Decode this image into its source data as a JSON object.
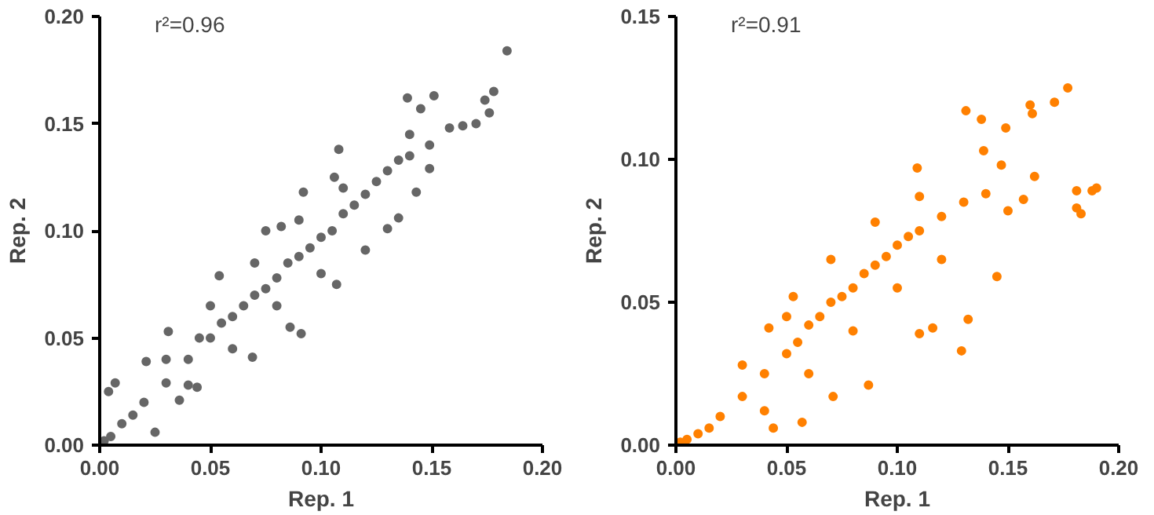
{
  "chart_data": [
    {
      "type": "scatter",
      "xlabel": "Rep. 1",
      "ylabel": "Rep. 2",
      "marker": "circle",
      "annotations": [
        "r²=0.96"
      ],
      "xlim": [
        0,
        0.2
      ],
      "ylim": [
        0,
        0.2
      ],
      "xticks": [
        {
          "value": 0,
          "label": "0.00"
        },
        {
          "value": 0.05,
          "label": "0.05"
        },
        {
          "value": 0.1,
          "label": "0.10"
        },
        {
          "value": 0.15,
          "label": "0.15"
        },
        {
          "value": 0.2,
          "label": "0.20"
        }
      ],
      "yticks": [
        {
          "value": 0,
          "label": "0.00"
        },
        {
          "value": 0.05,
          "label": "0.05"
        },
        {
          "value": 0.1,
          "label": "0.10"
        },
        {
          "value": 0.15,
          "label": "0.15"
        },
        {
          "value": 0.2,
          "label": "0.20"
        }
      ],
      "series": [
        {
          "color": "#666666",
          "x": [
            0.184,
            0.178,
            0.174,
            0.176,
            0.17,
            0.164,
            0.158,
            0.139,
            0.151,
            0.145,
            0.14,
            0.149,
            0.149,
            0.143,
            0.135,
            0.13,
            0.108,
            0.106,
            0.092,
            0.082,
            0.075,
            0.12,
            0.107,
            0.091,
            0.086,
            0.054,
            0.031,
            0.021,
            0.004,
            0.007,
            0.025,
            0.036,
            0.044,
            0.069,
            0.002,
            0.005,
            0.01,
            0.015,
            0.02,
            0.03,
            0.04,
            0.045,
            0.05,
            0.055,
            0.06,
            0.065,
            0.07,
            0.075,
            0.08,
            0.085,
            0.09,
            0.095,
            0.1,
            0.105,
            0.11,
            0.115,
            0.12,
            0.125,
            0.13,
            0.135,
            0.14,
            0.05,
            0.06,
            0.07,
            0.08,
            0.09,
            0.1,
            0.11,
            0.04,
            0.03
          ],
          "values": [
            0.184,
            0.165,
            0.161,
            0.155,
            0.15,
            0.149,
            0.148,
            0.162,
            0.163,
            0.157,
            0.145,
            0.14,
            0.129,
            0.118,
            0.106,
            0.101,
            0.138,
            0.125,
            0.118,
            0.102,
            0.1,
            0.091,
            0.075,
            0.052,
            0.055,
            0.079,
            0.053,
            0.039,
            0.025,
            0.029,
            0.006,
            0.021,
            0.027,
            0.041,
            0.002,
            0.004,
            0.01,
            0.014,
            0.02,
            0.029,
            0.04,
            0.05,
            0.05,
            0.057,
            0.06,
            0.065,
            0.07,
            0.073,
            0.078,
            0.085,
            0.088,
            0.092,
            0.097,
            0.1,
            0.108,
            0.112,
            0.117,
            0.123,
            0.128,
            0.133,
            0.135,
            0.065,
            0.045,
            0.085,
            0.065,
            0.105,
            0.08,
            0.12,
            0.028,
            0.04
          ]
        }
      ]
    },
    {
      "type": "scatter",
      "xlabel": "Rep. 1",
      "ylabel": "Rep. 2",
      "marker": "circle",
      "annotations": [
        "r²=0.91"
      ],
      "xlim": [
        0,
        0.2
      ],
      "ylim": [
        0,
        0.15
      ],
      "xticks": [
        {
          "value": 0,
          "label": "0.00"
        },
        {
          "value": 0.05,
          "label": "0.05"
        },
        {
          "value": 0.1,
          "label": "0.10"
        },
        {
          "value": 0.15,
          "label": "0.15"
        },
        {
          "value": 0.2,
          "label": "0.20"
        }
      ],
      "yticks": [
        {
          "value": 0,
          "label": "0.00"
        },
        {
          "value": 0.05,
          "label": "0.05"
        },
        {
          "value": 0.1,
          "label": "0.10"
        },
        {
          "value": 0.15,
          "label": "0.15"
        }
      ],
      "series": [
        {
          "color": "#ff8000",
          "x": [
            0.177,
            0.171,
            0.16,
            0.161,
            0.131,
            0.138,
            0.149,
            0.19,
            0.188,
            0.181,
            0.181,
            0.183,
            0.162,
            0.157,
            0.15,
            0.145,
            0.132,
            0.129,
            0.109,
            0.139,
            0.147,
            0.053,
            0.042,
            0.071,
            0.057,
            0.044,
            0.11,
            0.087,
            0.116,
            0.002,
            0.005,
            0.01,
            0.015,
            0.02,
            0.03,
            0.04,
            0.05,
            0.055,
            0.06,
            0.065,
            0.07,
            0.075,
            0.08,
            0.085,
            0.09,
            0.095,
            0.1,
            0.105,
            0.11,
            0.12,
            0.13,
            0.14,
            0.05,
            0.06,
            0.07,
            0.08,
            0.09,
            0.1,
            0.11,
            0.12,
            0.03,
            0.04
          ],
          "values": [
            0.125,
            0.12,
            0.119,
            0.116,
            0.117,
            0.114,
            0.111,
            0.09,
            0.089,
            0.089,
            0.083,
            0.081,
            0.094,
            0.086,
            0.082,
            0.059,
            0.044,
            0.033,
            0.097,
            0.103,
            0.098,
            0.052,
            0.041,
            0.017,
            0.008,
            0.006,
            0.039,
            0.021,
            0.041,
            0.001,
            0.002,
            0.004,
            0.006,
            0.01,
            0.017,
            0.025,
            0.032,
            0.036,
            0.042,
            0.045,
            0.05,
            0.052,
            0.055,
            0.06,
            0.063,
            0.066,
            0.07,
            0.073,
            0.075,
            0.08,
            0.085,
            0.088,
            0.045,
            0.025,
            0.065,
            0.04,
            0.078,
            0.055,
            0.087,
            0.065,
            0.028,
            0.012
          ]
        }
      ]
    }
  ]
}
